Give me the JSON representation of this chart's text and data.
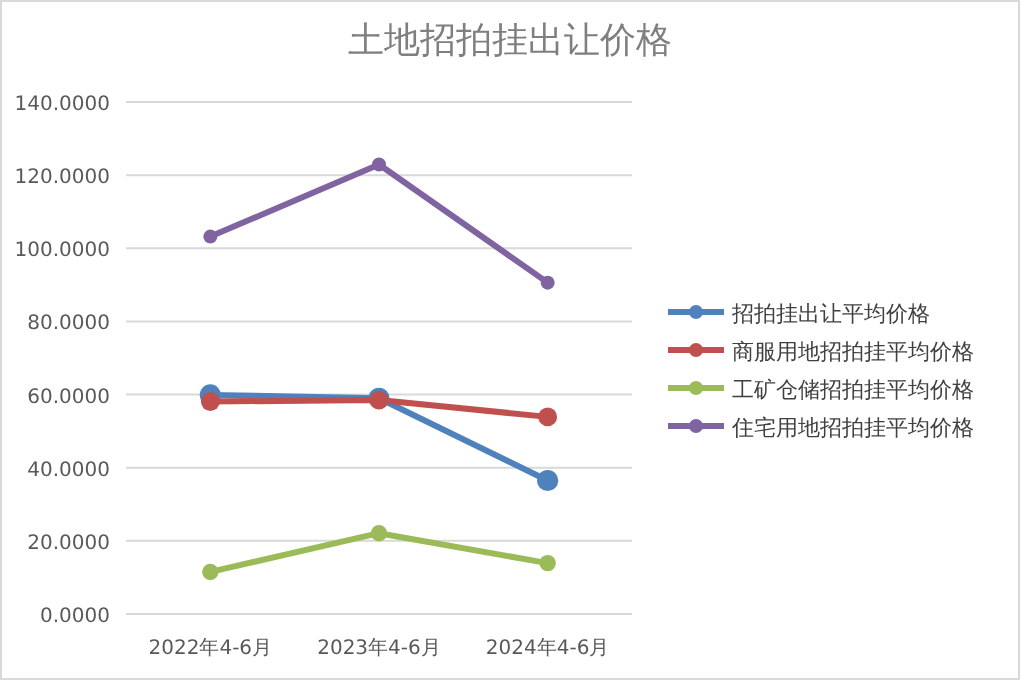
{
  "chart_data": {
    "type": "line",
    "title": "土地招拍挂出让价格",
    "categories": [
      "2022年4-6月",
      "2023年4-6月",
      "2024年4-6月"
    ],
    "series": [
      {
        "name": "招拍挂出让平均价格",
        "color": "#4f81bd",
        "values": [
          59.9,
          59,
          36.5
        ]
      },
      {
        "name": "商服用地招拍挂平均价格",
        "color": "#c0504d",
        "values": [
          58.1,
          58.5,
          53.9
        ]
      },
      {
        "name": "工矿仓储招拍挂平均价格",
        "color": "#9bbb59",
        "values": [
          11.5,
          22.1,
          13.9
        ]
      },
      {
        "name": "住宅用地招拍挂平均价格",
        "color": "#8064a2",
        "values": [
          103.2,
          122.9,
          90.6
        ]
      }
    ],
    "ylim": [
      0,
      140
    ],
    "yticks": [
      {
        "value": 0,
        "label": "0.0000"
      },
      {
        "value": 20,
        "label": "20.0000"
      },
      {
        "value": 40,
        "label": "40.0000"
      },
      {
        "value": 60,
        "label": "60.0000"
      },
      {
        "value": 80,
        "label": "80.0000"
      },
      {
        "value": 100,
        "label": "100.0000"
      },
      {
        "value": 120,
        "label": "120.0000"
      },
      {
        "value": 140,
        "label": "140.0000"
      }
    ],
    "grid": "y",
    "legend": "right",
    "marker": "circle",
    "line_style": "solid"
  }
}
